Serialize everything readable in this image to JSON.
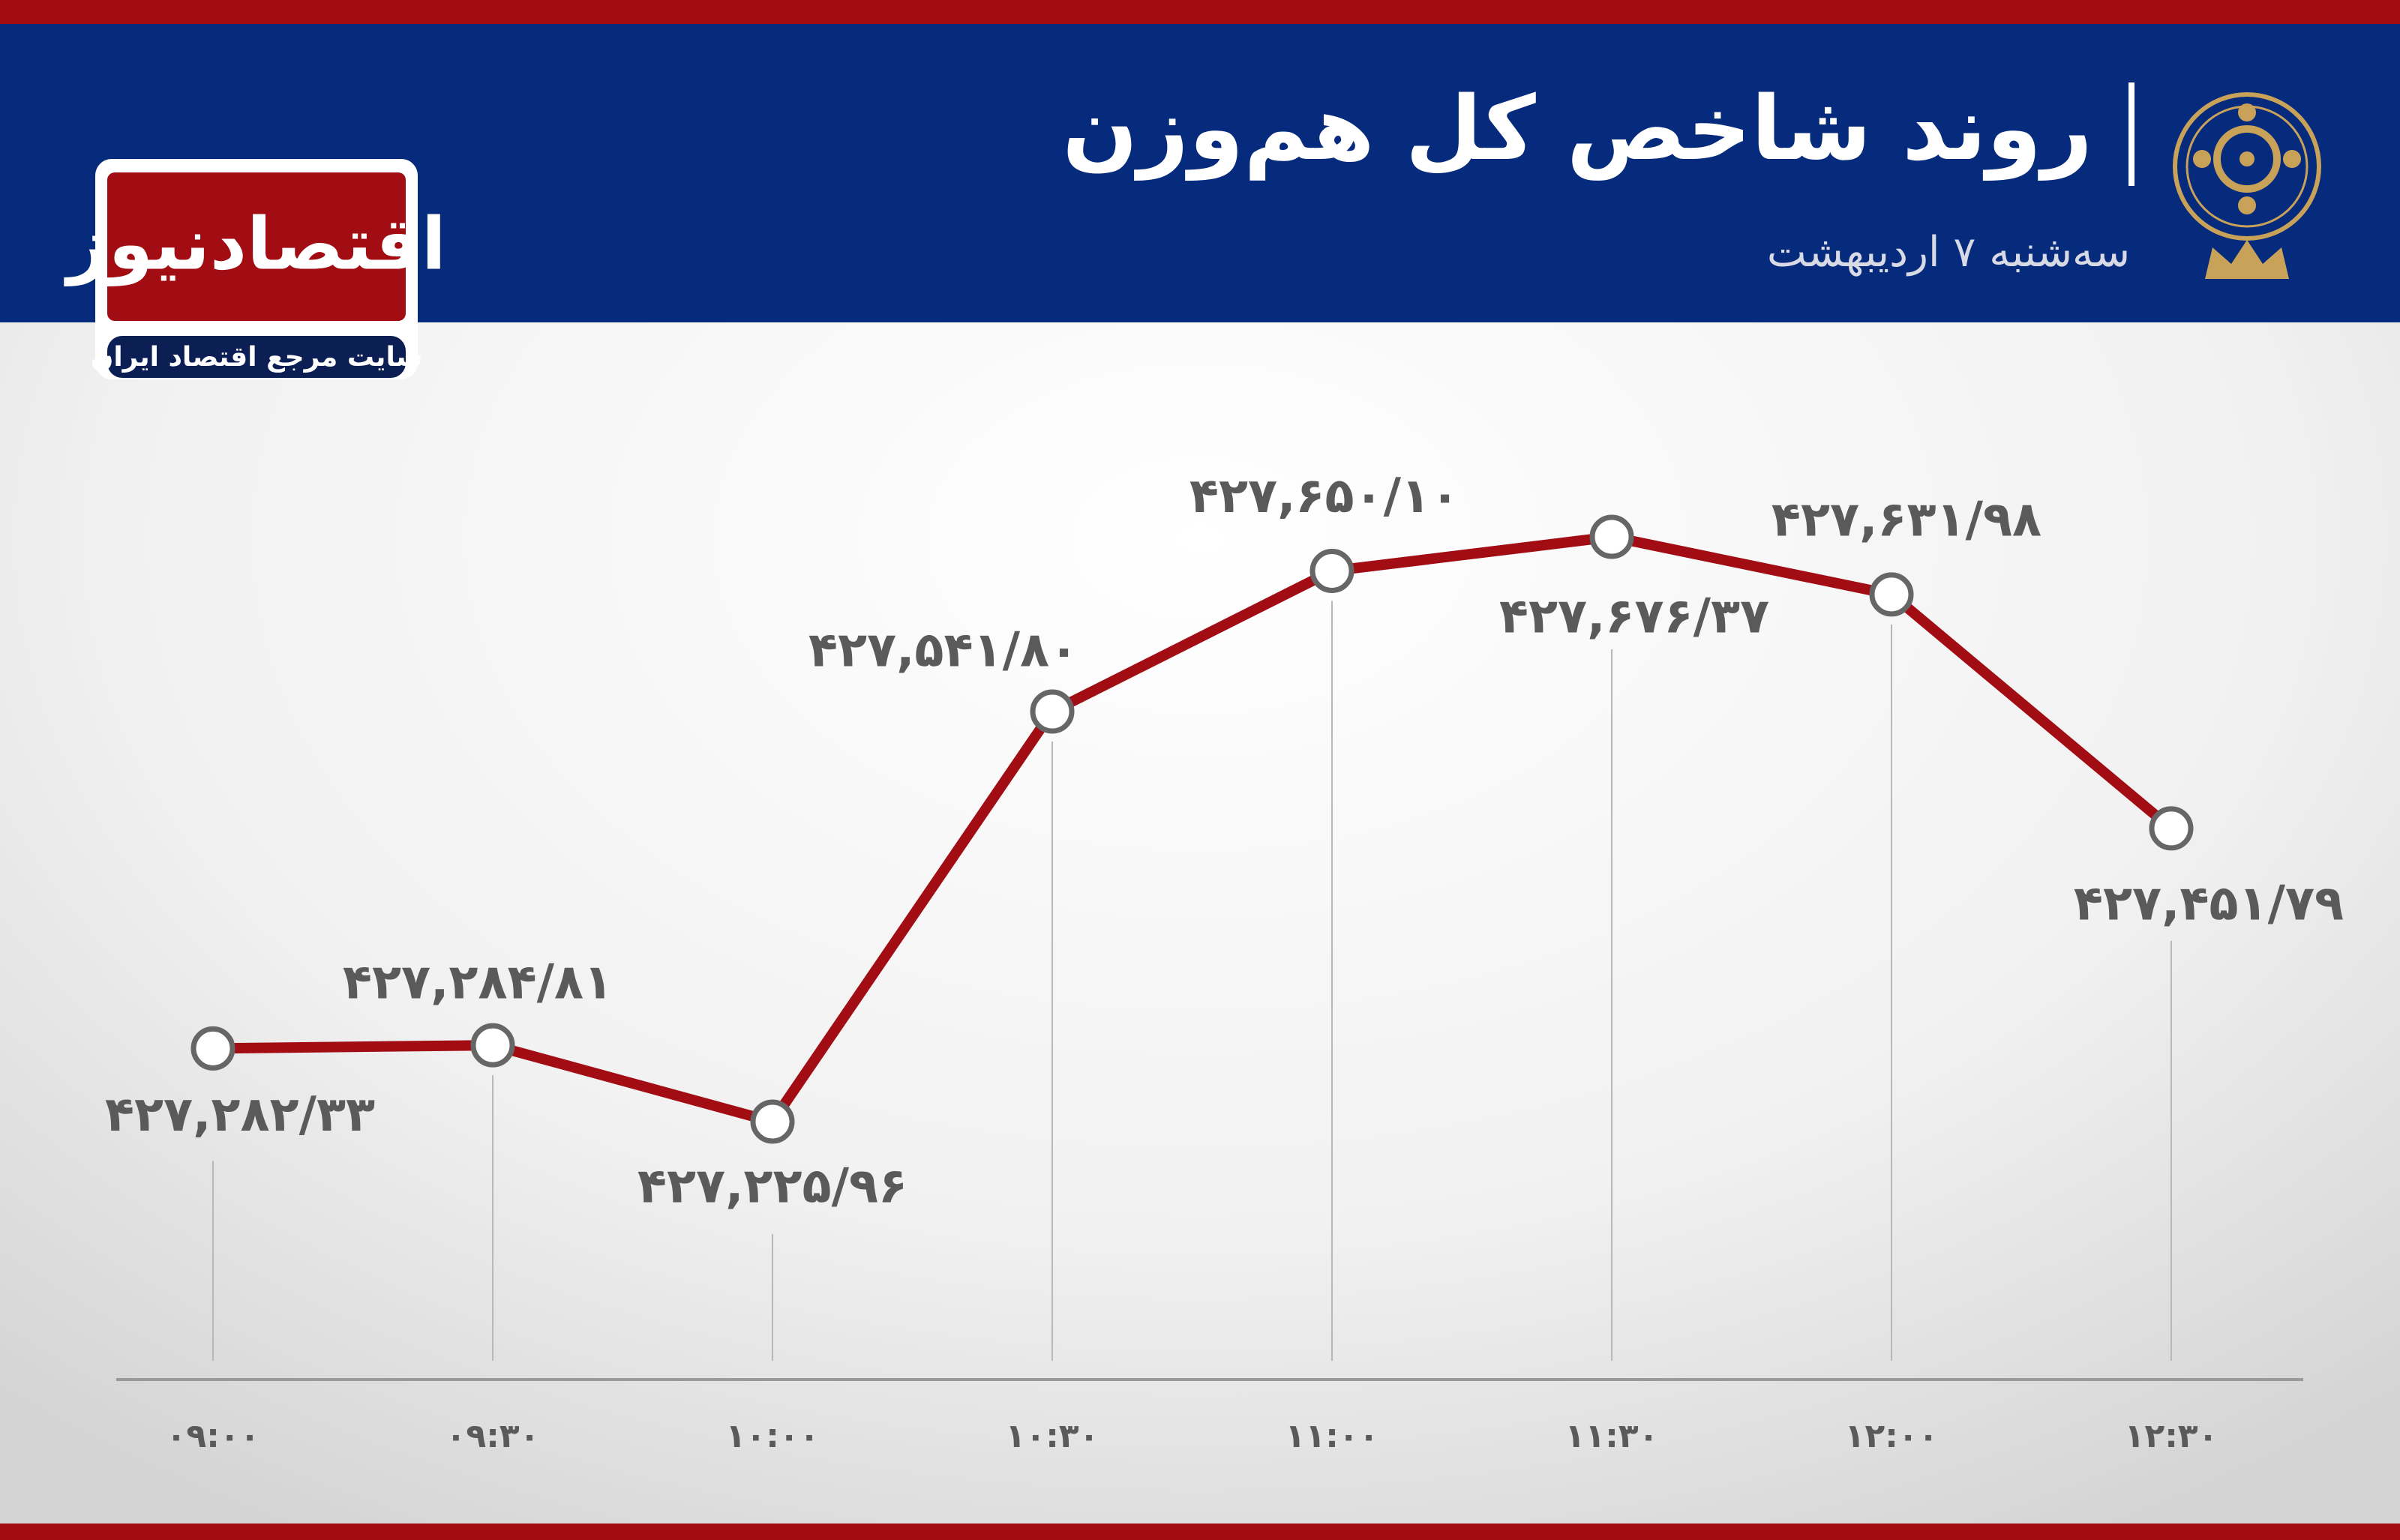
{
  "logo": {
    "name": "اقتصادنیوز",
    "tagline": "سایت مرجع اقتصاد ایران"
  },
  "chart_data": {
    "type": "line",
    "title": "روند شاخص کل هم‌وزن",
    "subtitle": "سه‌شنبه ۷ اردیبهشت",
    "categories": [
      "۰۹:۰۰",
      "۰۹:۳۰",
      "۱۰:۰۰",
      "۱۰:۳۰",
      "۱۱:۰۰",
      "۱۱:۳۰",
      "۱۲:۰۰",
      "۱۲:۳۰"
    ],
    "series": [
      {
        "color": "#a20d14",
        "values": [
          427282.33,
          427284.81,
          427225.96,
          427541.8,
          427650.1,
          427676.37,
          427631.98,
          427451.79
        ],
        "value_labels": [
          "۴۲۷,۲۸۲/۳۳",
          "۴۲۷,۲۸۴/۸۱",
          "۴۲۷,۲۲۵/۹۶",
          "۴۲۷,۵۴۱/۸۰",
          "۴۲۷,۶۵۰/۱۰",
          "۴۲۷,۶۷۶/۳۷",
          "۴۲۷,۶۳۱/۹۸",
          "۴۲۷,۴۵۱/۷۹"
        ]
      }
    ]
  }
}
